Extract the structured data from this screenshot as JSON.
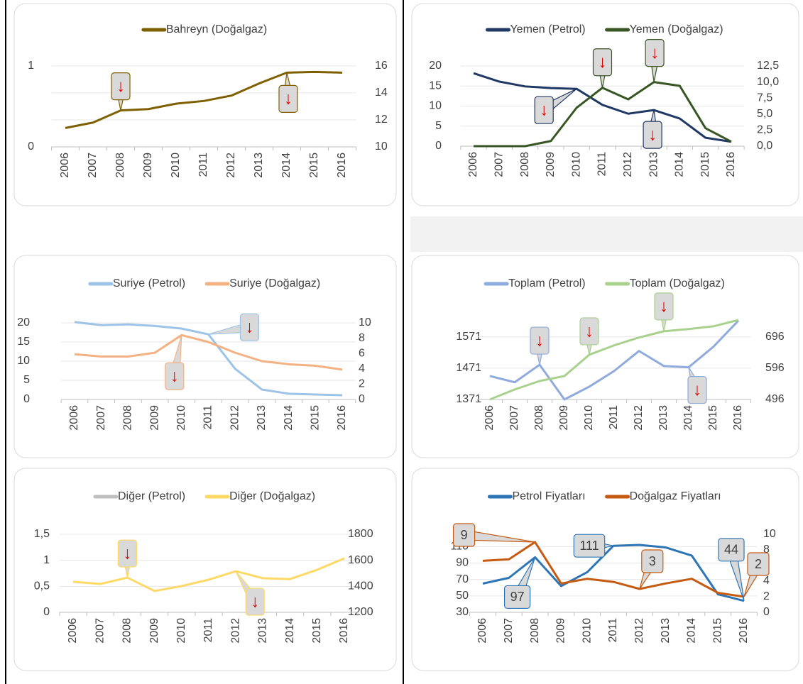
{
  "chart_data": [
    {
      "type": "line",
      "categories": [
        "2006",
        "2007",
        "2008",
        "2009",
        "2010",
        "2011",
        "2012",
        "2013",
        "2014",
        "2015",
        "2016"
      ],
      "series": [
        {
          "name": "Bahreyn (Doğalgaz)",
          "color": "#7f6000",
          "axis": "y2",
          "values": [
            11.4,
            11.8,
            12.7,
            12.8,
            13.2,
            13.4,
            13.8,
            14.7,
            15.5,
            15.55,
            15.5
          ]
        }
      ],
      "ylim": [
        0,
        1.2
      ],
      "yticks": [
        0,
        1
      ],
      "y2lim": [
        10,
        17.2
      ],
      "y2ticks": [
        10,
        12,
        14,
        16
      ],
      "grid": "y2",
      "annotations": [
        {
          "series": "Bahreyn (Doğalgaz)",
          "x": "2008",
          "text": "↓"
        },
        {
          "series": "Bahreyn (Doğalgaz)",
          "x": "2014",
          "text": "↓"
        }
      ]
    },
    {
      "type": "line",
      "categories": [
        "2006",
        "2007",
        "2008",
        "2009",
        "2010",
        "2011",
        "2012",
        "2013",
        "2014",
        "2015",
        "2016"
      ],
      "series": [
        {
          "name": "Yemen (Petrol)",
          "color": "#1f3864",
          "values": [
            18.2,
            16.1,
            14.9,
            14.5,
            14.3,
            10.3,
            8.1,
            9.0,
            6.9,
            2.1,
            1.1
          ]
        },
        {
          "name": "Yemen (Doğalgaz)",
          "color": "#375623",
          "axis": "y2",
          "values": [
            0,
            0,
            0,
            0.8,
            6.0,
            9.1,
            7.3,
            10.0,
            9.4,
            2.8,
            0.7
          ]
        }
      ],
      "ylim": [
        0,
        20
      ],
      "yticks": [
        0,
        5,
        10,
        15,
        20
      ],
      "y2lim": [
        0,
        12.5
      ],
      "y2ticks": [
        {
          "value": 0,
          "label": "0,0"
        },
        {
          "value": 2.5,
          "label": "2,5"
        },
        {
          "value": 5,
          "label": "5,0"
        },
        {
          "value": 7.5,
          "label": "7,5"
        },
        {
          "value": 10,
          "label": "10,0"
        },
        {
          "value": 12.5,
          "label": "12,5"
        }
      ],
      "grid": "y",
      "annotations": [
        {
          "series": "Yemen (Petrol)",
          "x": "2010",
          "text": "↓"
        },
        {
          "series": "Yemen (Petrol)",
          "x": "2013",
          "text": "↓"
        },
        {
          "series": "Yemen (Doğalgaz)",
          "x": "2011",
          "text": "↓"
        },
        {
          "series": "Yemen (Doğalgaz)",
          "x": "2013",
          "text": "↓"
        }
      ]
    },
    {
      "type": "line",
      "categories": [
        "2006",
        "2007",
        "2008",
        "2009",
        "2010",
        "2011",
        "2012",
        "2013",
        "2014",
        "2015",
        "2016"
      ],
      "series": [
        {
          "name": "Suriye (Petrol)",
          "color": "#9dc3e6",
          "values": [
            20.2,
            19.4,
            19.6,
            19.2,
            18.5,
            17.0,
            8.0,
            2.6,
            1.5,
            1.3,
            1.1
          ]
        },
        {
          "name": "Suriye (Doğalgaz)",
          "color": "#f4b183",
          "axis": "y2",
          "values": [
            5.9,
            5.6,
            5.6,
            6.1,
            8.4,
            7.5,
            6.1,
            5.0,
            4.6,
            4.4,
            3.9
          ]
        }
      ],
      "ylim": [
        0,
        20
      ],
      "yticks": [
        0,
        5,
        10,
        15,
        20
      ],
      "y2lim": [
        0,
        10
      ],
      "y2ticks": [
        0,
        2,
        4,
        6,
        8,
        10
      ],
      "grid": "y",
      "annotations": [
        {
          "series": "Suriye (Petrol)",
          "x": "2011",
          "text": "↓"
        },
        {
          "series": "Suriye (Doğalgaz)",
          "x": "2010",
          "text": "↓"
        }
      ]
    },
    {
      "type": "line",
      "categories": [
        "2006",
        "2007",
        "2008",
        "2009",
        "2010",
        "2011",
        "2012",
        "2013",
        "2014",
        "2015",
        "2016"
      ],
      "series": [
        {
          "name": "Toplam (Petrol)",
          "color": "#8faadc",
          "values": [
            1446,
            1426,
            1482,
            1371,
            1412,
            1462,
            1526,
            1478,
            1474,
            1540,
            1623
          ]
        },
        {
          "name": "Toplam (Doğalgaz)",
          "color": "#a9d18e",
          "axis": "y2",
          "values": [
            496,
            528,
            555,
            571,
            639,
            669,
            694,
            714,
            721,
            730,
            750
          ]
        }
      ],
      "ylim": [
        1371,
        1625
      ],
      "yticks": [
        1371,
        1471,
        1571
      ],
      "y2lim": [
        496,
        750
      ],
      "y2ticks": [
        496,
        596,
        696
      ],
      "grid": "y",
      "annotations": [
        {
          "series": "Toplam (Petrol)",
          "x": "2008",
          "text": "↓"
        },
        {
          "series": "Toplam (Doğalgaz)",
          "x": "2010",
          "text": "↓"
        },
        {
          "series": "Toplam (Doğalgaz)",
          "x": "2013",
          "text": "↓"
        },
        {
          "series": "Toplam (Petrol)",
          "x": "2014",
          "text": "↓"
        }
      ]
    },
    {
      "type": "line",
      "categories": [
        "2006",
        "2007",
        "2008",
        "2009",
        "2010",
        "2011",
        "2012",
        "2013",
        "2014",
        "2015",
        "2016"
      ],
      "series": [
        {
          "name": "Diğer (Petrol)",
          "color": "#bfbfbf"
        },
        {
          "name": "Diğer (Doğalgaz)",
          "color": "#ffd966",
          "axis": "y2",
          "values": [
            1435,
            1418,
            1467,
            1364,
            1402,
            1451,
            1516,
            1462,
            1456,
            1527,
            1615
          ]
        }
      ],
      "ylim": [
        0,
        1.5
      ],
      "yticks": [
        0,
        {
          "value": 0.5,
          "label": "0,5"
        },
        1,
        {
          "value": 1.5,
          "label": "1,5"
        }
      ],
      "y2lim": [
        1200,
        1800
      ],
      "y2ticks": [
        1200,
        1400,
        1600,
        1800
      ],
      "grid": "y",
      "annotations": [
        {
          "series": "Diğer (Doğalgaz)",
          "x": "2008",
          "text": "↓"
        },
        {
          "series": "Diğer (Doğalgaz)",
          "x": "2012",
          "text": "↓"
        }
      ]
    },
    {
      "type": "line",
      "categories": [
        "2006",
        "2007",
        "2008",
        "2009",
        "2010",
        "2011",
        "2012",
        "2013",
        "2014",
        "2015",
        "2016"
      ],
      "series": [
        {
          "name": "Petrol Fiyatları",
          "color": "#2e75b6",
          "values": [
            65,
            72,
            97,
            62,
            79,
            111,
            112,
            109,
            99,
            52,
            44
          ],
          "value_labels": [
            null,
            null,
            "97",
            null,
            null,
            "111",
            null,
            null,
            null,
            null,
            "44"
          ]
        },
        {
          "name": "Doğalgaz Fiyatları",
          "color": "#c55a11",
          "axis": "y2",
          "values": [
            6.6,
            6.8,
            9,
            3.7,
            4.3,
            3.9,
            3,
            3.7,
            4.3,
            2.5,
            2
          ],
          "value_labels": [
            null,
            null,
            "9",
            null,
            null,
            null,
            "3",
            null,
            null,
            null,
            "2"
          ]
        }
      ],
      "ylim": [
        30,
        125
      ],
      "yticks": [
        30,
        50,
        70,
        90,
        110
      ],
      "y2lim": [
        0,
        10
      ],
      "y2ticks": [
        0,
        2,
        4,
        6,
        8,
        10
      ],
      "grid": "y",
      "annotations": []
    }
  ]
}
